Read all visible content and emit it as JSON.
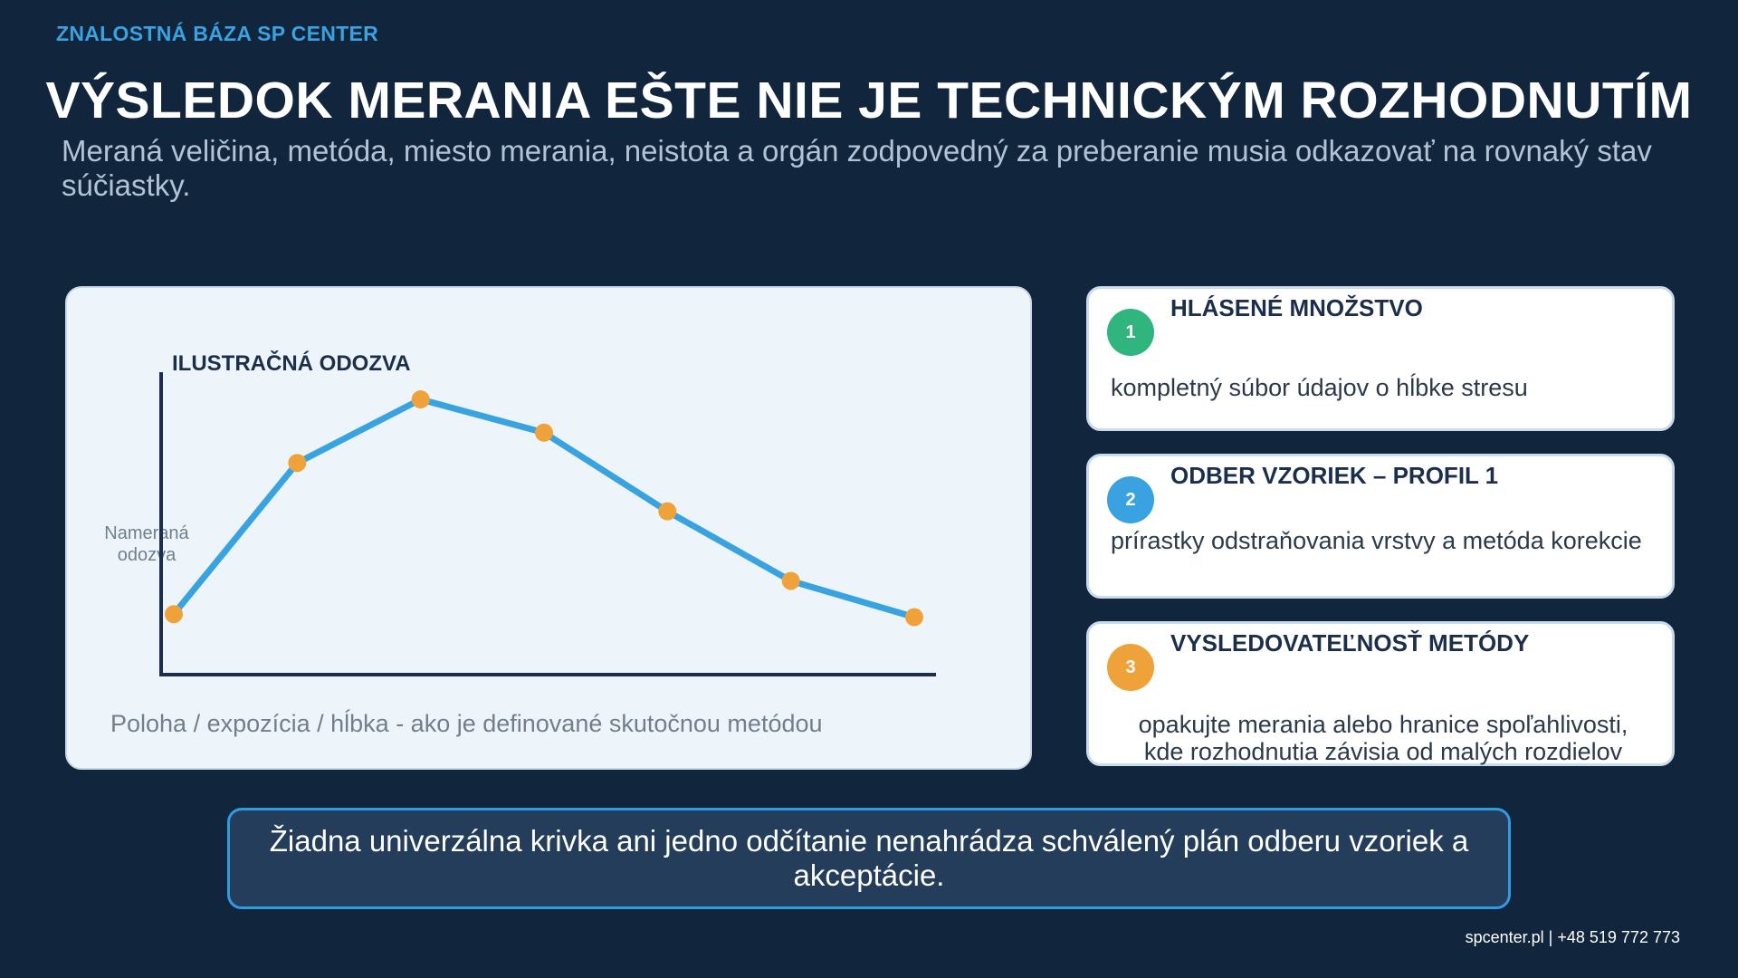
{
  "header": {
    "kicker": "ZNALOSTNÁ BÁZA SP CENTER",
    "title": "VÝSLEDOK MERANIA EŠTE NIE JE TECHNICKÝM ROZHODNUTÍM",
    "subtitle": "Meraná veličina, metóda, miesto merania, neistota a orgán zodpovedný za preberanie musia odkazovať na rovnaký stav súčiastky."
  },
  "chart_data": {
    "type": "line",
    "title": "ILUSTRAČNÁ ODOZVA",
    "ylabel_lines": [
      "Nameraná",
      "odozva"
    ],
    "xlabel": "Poloha / expozícia / hĺbka - ako je definované skutočnou metódou",
    "x": [
      0,
      1,
      2,
      3,
      4,
      5,
      6
    ],
    "values": [
      0.2,
      0.7,
      0.91,
      0.8,
      0.54,
      0.31,
      0.19
    ],
    "ylim": [
      0,
      1
    ],
    "grid": false,
    "colors": {
      "line": "#39a3e0",
      "marker": "#f0a23a",
      "axis": "#1b2f4c"
    }
  },
  "cards": [
    {
      "num": "1",
      "title": "HLÁSENÉ MNOŽSTVO",
      "body": "kompletný súbor údajov o hĺbke stresu",
      "color": "#2fb57d"
    },
    {
      "num": "2",
      "title": "ODBER VZORIEK – PROFIL 1",
      "body": "prírastky odstraňovania vrstvy a metóda korekcie",
      "color": "#3aa2e0"
    },
    {
      "num": "3",
      "title": "VYSLEDOVATEĽNOSŤ METÓDY",
      "body": "opakujte merania alebo hranice spoľahlivosti, kde rozhodnutia závisia od malých rozdielov",
      "color": "#f0a23a"
    }
  ],
  "banner": "Žiadna univerzálna krivka ani jedno odčítanie nenahrádza schválený plán odberu vzoriek a akceptácie.",
  "footer": "spcenter.pl  |  +48 519 772 773"
}
